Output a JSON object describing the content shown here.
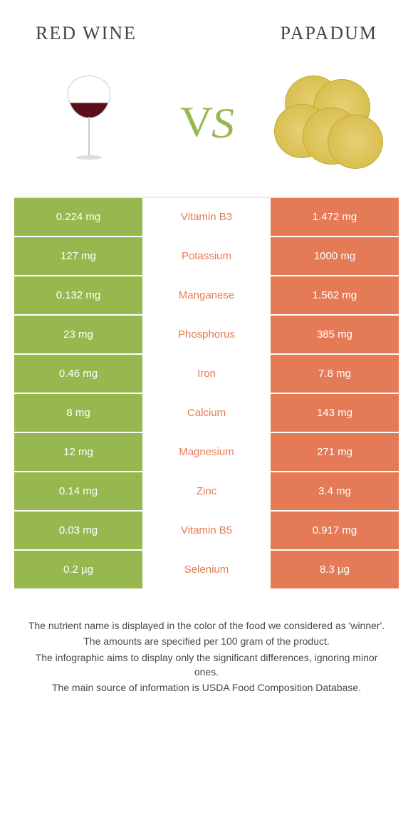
{
  "header": {
    "left_title": "Red Wine",
    "right_title": "Papadum"
  },
  "vs_label": "vs",
  "colors": {
    "left_food": "#97b84f",
    "right_food": "#e57a56",
    "row_border": "#ffffff",
    "text_white": "#ffffff",
    "background": "#ffffff",
    "footer_text": "#4a4a4a"
  },
  "table": {
    "type": "comparison-table",
    "rows": [
      {
        "nutrient": "Vitamin B3",
        "left": "0.224 mg",
        "right": "1.472 mg",
        "winner": "right"
      },
      {
        "nutrient": "Potassium",
        "left": "127 mg",
        "right": "1000 mg",
        "winner": "right"
      },
      {
        "nutrient": "Manganese",
        "left": "0.132 mg",
        "right": "1.562 mg",
        "winner": "right"
      },
      {
        "nutrient": "Phosphorus",
        "left": "23 mg",
        "right": "385 mg",
        "winner": "right"
      },
      {
        "nutrient": "Iron",
        "left": "0.46 mg",
        "right": "7.8 mg",
        "winner": "right"
      },
      {
        "nutrient": "Calcium",
        "left": "8 mg",
        "right": "143 mg",
        "winner": "right"
      },
      {
        "nutrient": "Magnesium",
        "left": "12 mg",
        "right": "271 mg",
        "winner": "right"
      },
      {
        "nutrient": "Zinc",
        "left": "0.14 mg",
        "right": "3.4 mg",
        "winner": "right"
      },
      {
        "nutrient": "Vitamin B5",
        "left": "0.03 mg",
        "right": "0.917 mg",
        "winner": "right"
      },
      {
        "nutrient": "Selenium",
        "left": "0.2 µg",
        "right": "8.3 µg",
        "winner": "right"
      }
    ]
  },
  "footer": {
    "lines": [
      "The nutrient name is displayed in the color of the food we considered as 'winner'.",
      "The amounts are specified per 100 gram of the product.",
      "The infographic aims to display only the significant differences, ignoring minor ones.",
      "The main source of information is USDA Food Composition Database."
    ]
  }
}
